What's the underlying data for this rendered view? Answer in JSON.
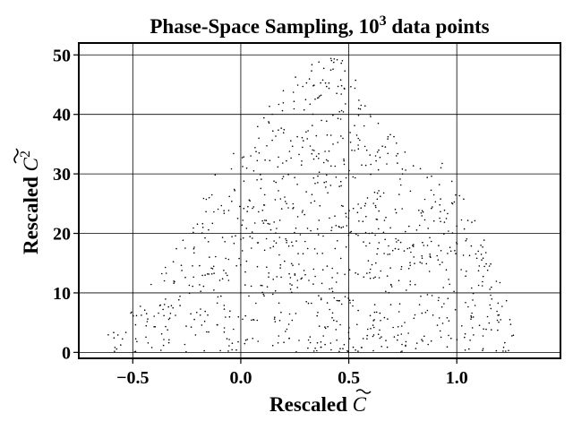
{
  "chart_data": {
    "type": "scatter",
    "title": "Phase-Space Sampling, 10",
    "title_superscript": "3",
    "title_suffix": " data points",
    "xlabel": "Rescaled",
    "xlabel_symbol": "C",
    "ylabel": "Rescaled",
    "ylabel_symbol": "C",
    "ylabel_superscript": "2",
    "xlim": [
      -0.75,
      1.48
    ],
    "ylim": [
      -1,
      52
    ],
    "xticks": [
      -0.5,
      0.0,
      0.5,
      1.0
    ],
    "xtick_labels": [
      "−0.5",
      "0.0",
      "0.5",
      "1.0"
    ],
    "yticks": [
      0,
      10,
      20,
      30,
      40,
      50
    ],
    "ytick_labels": [
      "0",
      "10",
      "20",
      "30",
      "40",
      "50"
    ],
    "grid": true,
    "point_color": "#000000",
    "n_points": 1000,
    "envelope_x": [
      -0.7,
      -0.5,
      -0.3,
      -0.15,
      -0.05,
      0.1,
      0.25,
      0.35,
      0.45,
      0.55,
      0.65,
      0.78,
      0.85,
      0.95,
      1.05,
      1.12,
      1.2,
      1.27
    ],
    "envelope_ymax": [
      0,
      7,
      18,
      28,
      34,
      40,
      47,
      50,
      50,
      46,
      38,
      36,
      32,
      32,
      25,
      20,
      13,
      4
    ]
  }
}
